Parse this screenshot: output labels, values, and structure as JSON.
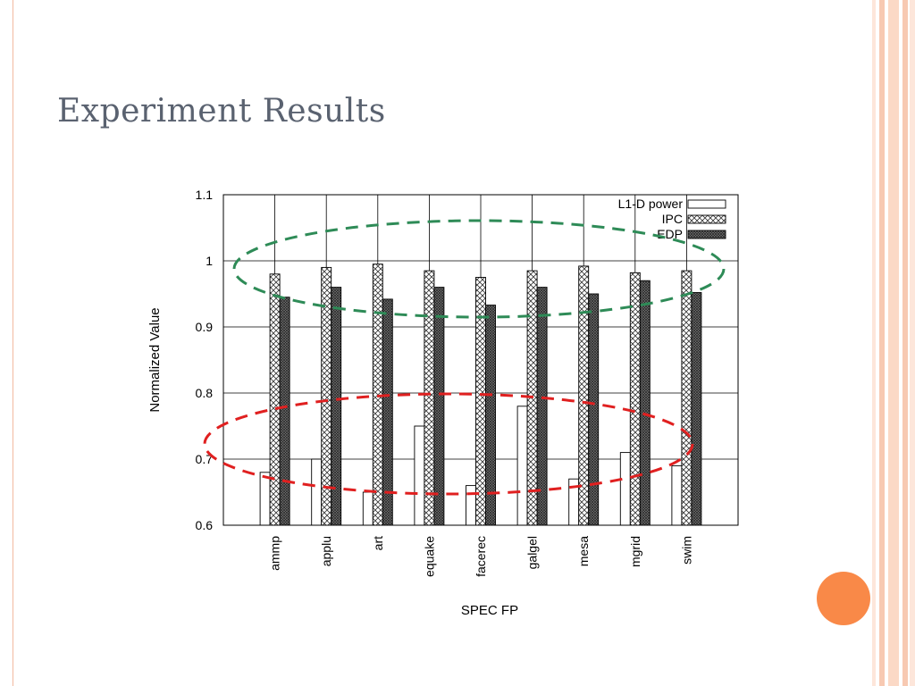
{
  "slide": {
    "title": "Experiment Results",
    "accent_color": "#f98948",
    "frame_color": "#f7c9b2"
  },
  "chart_data": {
    "type": "bar",
    "title": "",
    "xlabel": "SPEC FP",
    "ylabel": "Normalized Value",
    "ylim": [
      0.6,
      1.1
    ],
    "yticks": [
      "0.6",
      "0.7",
      "0.8",
      "0.9",
      "1",
      "1.1"
    ],
    "grid": true,
    "legend_position": "top-right",
    "categories": [
      "ammp",
      "applu",
      "art",
      "equake",
      "facerec",
      "galgel",
      "mesa",
      "mgrid",
      "swim"
    ],
    "series": [
      {
        "name": "L1-D power",
        "fill": "white",
        "values": [
          0.68,
          0.7,
          0.65,
          0.75,
          0.66,
          0.78,
          0.67,
          0.71,
          0.69
        ]
      },
      {
        "name": "IPC",
        "fill": "crosshatch",
        "values": [
          0.98,
          0.99,
          0.995,
          0.985,
          0.975,
          0.985,
          0.992,
          0.982,
          0.985
        ]
      },
      {
        "name": "EDP",
        "fill": "dense-crosshatch",
        "values": [
          0.945,
          0.96,
          0.942,
          0.96,
          0.933,
          0.96,
          0.95,
          0.97,
          0.952
        ]
      }
    ],
    "annotations": [
      {
        "type": "dashed-ellipse",
        "color": "#2e8b57",
        "highlights": "IPC"
      },
      {
        "type": "dashed-ellipse",
        "color": "#e02020",
        "highlights": "L1-D power"
      }
    ]
  }
}
